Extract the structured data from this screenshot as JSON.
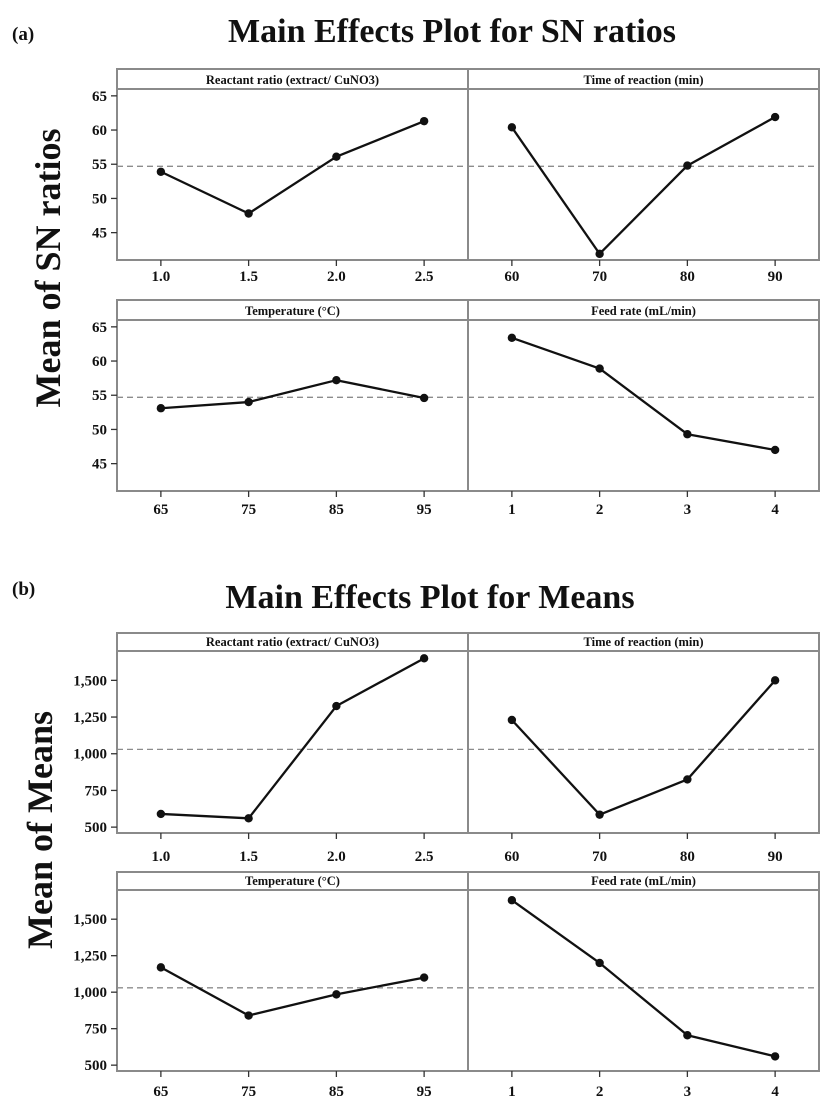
{
  "chart_data": [
    {
      "label": "(a)",
      "title": "Main Effects Plot for SN ratios",
      "type": "line",
      "ylabel": "Mean of SN ratios",
      "ylim": [
        41,
        66
      ],
      "yticks": [
        45,
        50,
        55,
        60,
        65
      ],
      "grand_mean": 54.7,
      "panels": [
        {
          "name": "Reactant ratio (extract/ CuNO3)",
          "categories": [
            "1.0",
            "1.5",
            "2.0",
            "2.5"
          ],
          "values": [
            53.9,
            47.8,
            56.1,
            61.3
          ]
        },
        {
          "name": "Time of reaction (min)",
          "categories": [
            "60",
            "70",
            "80",
            "90"
          ],
          "values": [
            60.4,
            41.9,
            54.8,
            61.9
          ]
        },
        {
          "name": "Temperature (°C)",
          "categories": [
            "65",
            "75",
            "85",
            "95"
          ],
          "values": [
            53.1,
            54.0,
            57.2,
            54.6
          ]
        },
        {
          "name": "Feed rate (mL/min)",
          "categories": [
            "1",
            "2",
            "3",
            "4"
          ],
          "values": [
            63.4,
            58.9,
            49.3,
            47.0
          ]
        }
      ]
    },
    {
      "label": "(b)",
      "title": "Main Effects Plot for Means",
      "type": "line",
      "ylabel": "Mean of Means",
      "ylim": [
        460,
        1700
      ],
      "yticks": [
        500,
        750,
        1000,
        1250,
        1500
      ],
      "grand_mean": 1030,
      "panels": [
        {
          "name": "Reactant ratio (extract/ CuNO3)",
          "categories": [
            "1.0",
            "1.5",
            "2.0",
            "2.5"
          ],
          "values": [
            590,
            560,
            1325,
            1650
          ]
        },
        {
          "name": "Time of reaction (min)",
          "categories": [
            "60",
            "70",
            "80",
            "90"
          ],
          "values": [
            1230,
            585,
            825,
            1500
          ]
        },
        {
          "name": "Temperature (°C)",
          "categories": [
            "65",
            "75",
            "85",
            "95"
          ],
          "values": [
            1170,
            840,
            985,
            1100
          ]
        },
        {
          "name": "Feed rate (mL/min)",
          "categories": [
            "1",
            "2",
            "3",
            "4"
          ],
          "values": [
            1630,
            1200,
            705,
            560
          ]
        }
      ]
    }
  ]
}
